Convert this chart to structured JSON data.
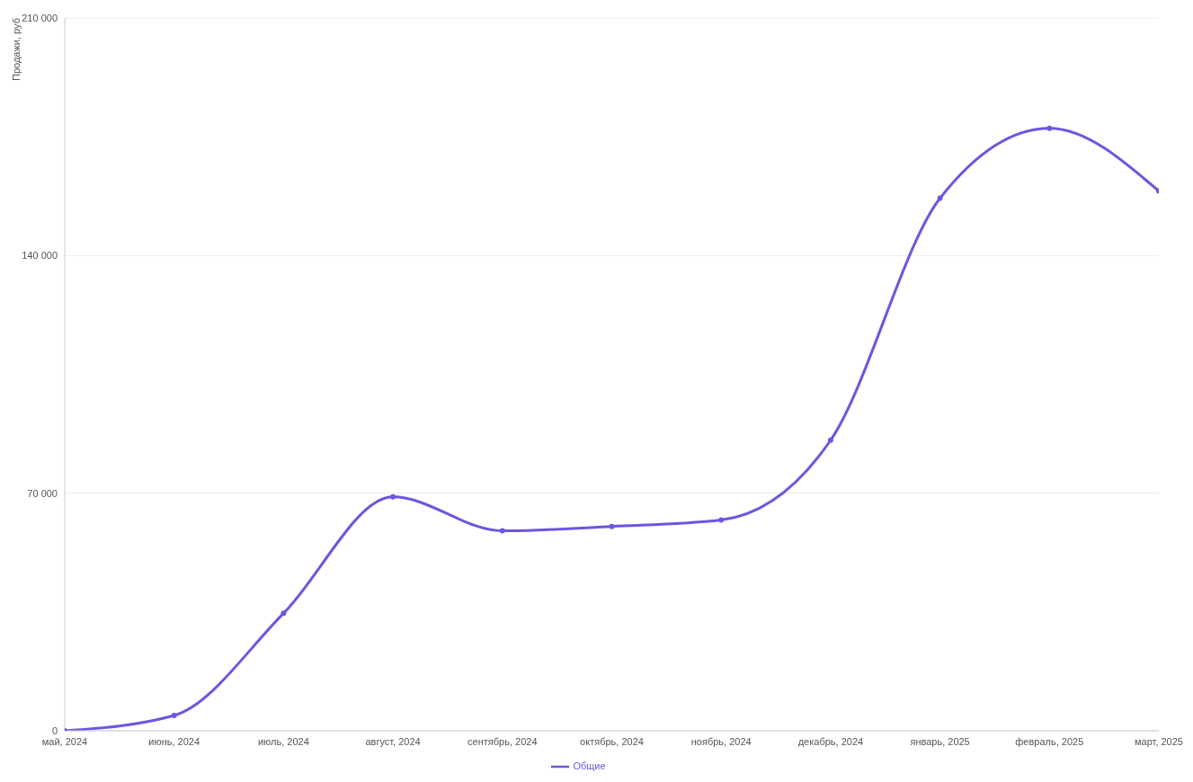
{
  "chart_data": {
    "type": "line",
    "ylabel": "Продажи, руб",
    "categories": [
      "май, 2024",
      "июнь, 2024",
      "июль, 2024",
      "август, 2024",
      "сентябрь, 2024",
      "октябрь, 2024",
      "ноябрь, 2024",
      "декабрь, 2024",
      "январь, 2025",
      "февраль, 2025",
      "март, 2025"
    ],
    "series": [
      {
        "name": "Общие",
        "color": "#6b57e0",
        "values": [
          0,
          4500,
          34600,
          68900,
          58900,
          60200,
          62100,
          85600,
          156900,
          177500,
          159000
        ]
      }
    ],
    "ylim": [
      0,
      210000
    ],
    "yticks": [
      {
        "value": 0,
        "label": "0"
      },
      {
        "value": 70000,
        "label": "70 000"
      },
      {
        "value": 140000,
        "label": "140 000"
      },
      {
        "value": 210000,
        "label": "210 000"
      }
    ],
    "grid": "y",
    "legend": "bottom",
    "marker": "circle",
    "line_style": "solid"
  }
}
